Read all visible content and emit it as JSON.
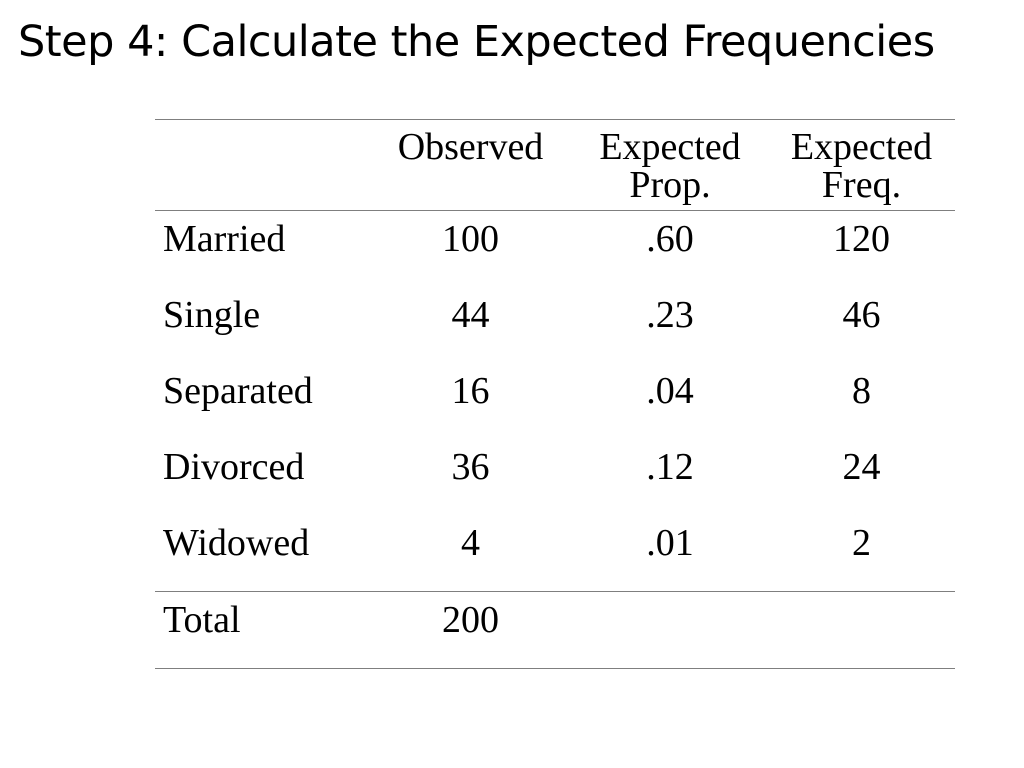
{
  "title": "Step 4: Calculate the Expected Frequencies",
  "table": {
    "headers": {
      "label": "",
      "observed": "Observed",
      "expected_prop": [
        "Expected",
        "Prop."
      ],
      "expected_freq": [
        "Expected",
        "Freq."
      ]
    },
    "rows": [
      {
        "category": "Married",
        "observed": "100",
        "expected_prop": ".60",
        "expected_freq": "120"
      },
      {
        "category": "Single",
        "observed": "44",
        "expected_prop": ".23",
        "expected_freq": "46"
      },
      {
        "category": "Separated",
        "observed": "16",
        "expected_prop": ".04",
        "expected_freq": "8"
      },
      {
        "category": "Divorced",
        "observed": "36",
        "expected_prop": ".12",
        "expected_freq": "24"
      },
      {
        "category": "Widowed",
        "observed": "4",
        "expected_prop": ".01",
        "expected_freq": "2"
      }
    ],
    "total": {
      "label": "Total",
      "observed": "200",
      "expected_prop": "",
      "expected_freq": ""
    }
  }
}
